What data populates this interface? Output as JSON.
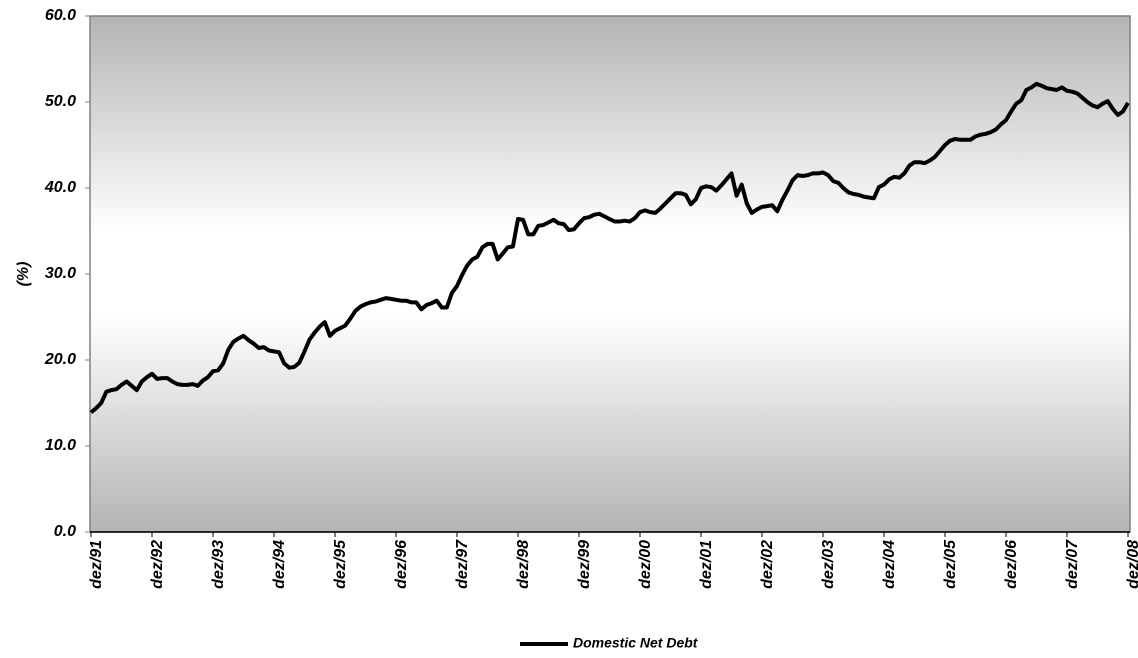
{
  "chart_data": {
    "type": "line",
    "y_label": "(%)",
    "categories": [
      "dez/91",
      null,
      null,
      null,
      null,
      null,
      null,
      null,
      null,
      null,
      null,
      null,
      "dez/92",
      null,
      null,
      null,
      null,
      null,
      null,
      null,
      null,
      null,
      null,
      null,
      "dez/93",
      null,
      null,
      null,
      null,
      null,
      null,
      null,
      null,
      null,
      null,
      null,
      "dez/94",
      null,
      null,
      null,
      null,
      null,
      null,
      null,
      null,
      null,
      null,
      null,
      "dez/95",
      null,
      null,
      null,
      null,
      null,
      null,
      null,
      null,
      null,
      null,
      null,
      "dez/96",
      null,
      null,
      null,
      null,
      null,
      null,
      null,
      null,
      null,
      null,
      null,
      "dez/97",
      null,
      null,
      null,
      null,
      null,
      null,
      null,
      null,
      null,
      null,
      null,
      "dez/98",
      null,
      null,
      null,
      null,
      null,
      null,
      null,
      null,
      null,
      null,
      null,
      "dez/99",
      null,
      null,
      null,
      null,
      null,
      null,
      null,
      null,
      null,
      null,
      null,
      "dez/00",
      null,
      null,
      null,
      null,
      null,
      null,
      null,
      null,
      null,
      null,
      null,
      "dez/01",
      null,
      null,
      null,
      null,
      null,
      null,
      null,
      null,
      null,
      null,
      null,
      "dez/02",
      null,
      null,
      null,
      null,
      null,
      null,
      null,
      null,
      null,
      null,
      null,
      "dez/03",
      null,
      null,
      null,
      null,
      null,
      null,
      null,
      null,
      null,
      null,
      null,
      "dez/04",
      null,
      null,
      null,
      null,
      null,
      null,
      null,
      null,
      null,
      null,
      null,
      "dez/05",
      null,
      null,
      null,
      null,
      null,
      null,
      null,
      null,
      null,
      null,
      null,
      "dez/06",
      null,
      null,
      null,
      null,
      null,
      null,
      null,
      null,
      null,
      null,
      null,
      "dez/07",
      null,
      null,
      null,
      null,
      null,
      null,
      null,
      null,
      null,
      null,
      null,
      "dez/08"
    ],
    "series": [
      {
        "name": "Domestic Net Debt",
        "color": "#000000",
        "values": [
          13.9,
          14.4,
          15.0,
          16.3,
          16.5,
          16.6,
          17.1,
          17.5,
          17.0,
          16.5,
          17.5,
          18.0,
          18.4,
          17.8,
          17.9,
          17.9,
          17.5,
          17.2,
          17.1,
          17.1,
          17.2,
          17.0,
          17.6,
          18.0,
          18.7,
          18.8,
          19.6,
          21.2,
          22.1,
          22.5,
          22.8,
          22.3,
          21.9,
          21.4,
          21.5,
          21.1,
          21.0,
          20.9,
          19.6,
          19.1,
          19.2,
          19.7,
          21.0,
          22.4,
          23.2,
          23.9,
          24.4,
          22.8,
          23.4,
          23.7,
          24.0,
          24.8,
          25.7,
          26.2,
          26.5,
          26.7,
          26.8,
          27.0,
          27.2,
          27.1,
          27.0,
          26.9,
          26.9,
          26.7,
          26.7,
          25.9,
          26.4,
          26.6,
          26.9,
          26.1,
          26.1,
          27.8,
          28.6,
          29.9,
          31.0,
          31.7,
          32.0,
          33.1,
          33.5,
          33.5,
          31.7,
          32.4,
          33.1,
          33.2,
          36.4,
          36.3,
          34.6,
          34.6,
          35.6,
          35.7,
          36.0,
          36.3,
          35.9,
          35.8,
          35.1,
          35.2,
          35.9,
          36.5,
          36.6,
          36.9,
          37.0,
          36.7,
          36.4,
          36.1,
          36.1,
          36.2,
          36.1,
          36.5,
          37.2,
          37.4,
          37.2,
          37.1,
          37.6,
          38.2,
          38.8,
          39.4,
          39.4,
          39.2,
          38.1,
          38.7,
          40.0,
          40.2,
          40.1,
          39.7,
          40.3,
          41.0,
          41.7,
          39.1,
          40.4,
          38.2,
          37.1,
          37.5,
          37.8,
          37.9,
          38.0,
          37.3,
          38.6,
          39.7,
          40.9,
          41.5,
          41.4,
          41.5,
          41.7,
          41.7,
          41.8,
          41.5,
          40.8,
          40.6,
          40.0,
          39.5,
          39.3,
          39.2,
          39.0,
          38.9,
          38.8,
          40.1,
          40.4,
          41.0,
          41.3,
          41.2,
          41.7,
          42.6,
          43.0,
          43.0,
          42.9,
          43.2,
          43.6,
          44.3,
          45.0,
          45.5,
          45.7,
          45.6,
          45.6,
          45.6,
          46.0,
          46.2,
          46.3,
          46.5,
          46.8,
          47.4,
          47.9,
          48.9,
          49.8,
          50.2,
          51.4,
          51.7,
          52.1,
          51.9,
          51.6,
          51.5,
          51.4,
          51.7,
          51.3,
          51.2,
          51.0,
          50.5,
          50.0,
          49.6,
          49.4,
          49.8,
          50.1,
          49.2,
          48.5,
          48.9,
          49.9
        ]
      }
    ],
    "ylim": [
      0,
      60
    ],
    "yticks": [
      {
        "value": 0,
        "label": "0.0"
      },
      {
        "value": 10,
        "label": "10.0"
      },
      {
        "value": 20,
        "label": "20.0"
      },
      {
        "value": 30,
        "label": "30.0"
      },
      {
        "value": 40,
        "label": "40.0"
      },
      {
        "value": 50,
        "label": "50.0"
      },
      {
        "value": 60,
        "label": "60.0"
      }
    ],
    "legend": "bottom"
  }
}
